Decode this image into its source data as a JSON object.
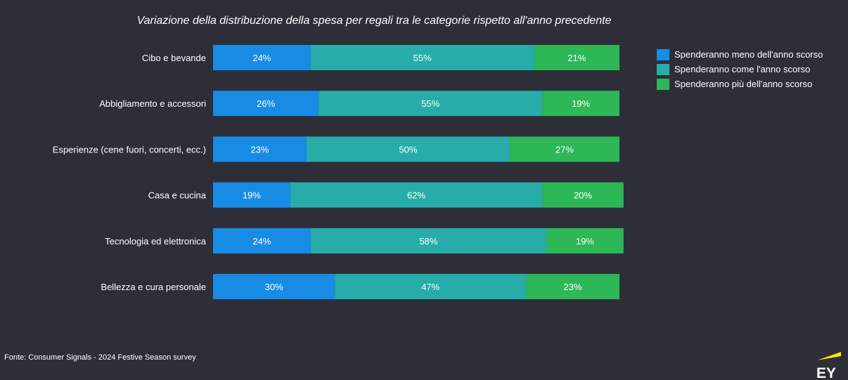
{
  "chart_data": {
    "type": "bar",
    "orientation": "horizontal",
    "stacked": true,
    "title": "Variazione della distribuzione della spesa per regali tra le categorie rispetto all'anno precedente",
    "categories": [
      "Cibo e bevande",
      "Abbigliamento e accessori",
      "Esperienze (cene fuori, concerti, ecc.)",
      "Casa e cucina",
      "Tecnologia ed elettronica",
      "Bellezza e cura personale"
    ],
    "series": [
      {
        "name": "Spenderanno meno dell'anno scorso",
        "color": "#188ce5",
        "values": [
          24,
          26,
          23,
          19,
          24,
          30
        ]
      },
      {
        "name": "Spenderanno come l'anno scorso",
        "color": "#27acaa",
        "values": [
          55,
          55,
          50,
          62,
          58,
          47
        ]
      },
      {
        "name": "Spenderanno più dell'anno scorso",
        "color": "#2db757",
        "values": [
          21,
          19,
          27,
          20,
          19,
          23
        ]
      }
    ],
    "value_suffix": "%",
    "xlim": [
      0,
      100
    ],
    "grid": false,
    "legend_position": "right"
  },
  "source": "Fonte: Consumer Signals - 2024 Festive Season survey",
  "logo": {
    "text": "EY",
    "accent_color": "#ffe600"
  }
}
